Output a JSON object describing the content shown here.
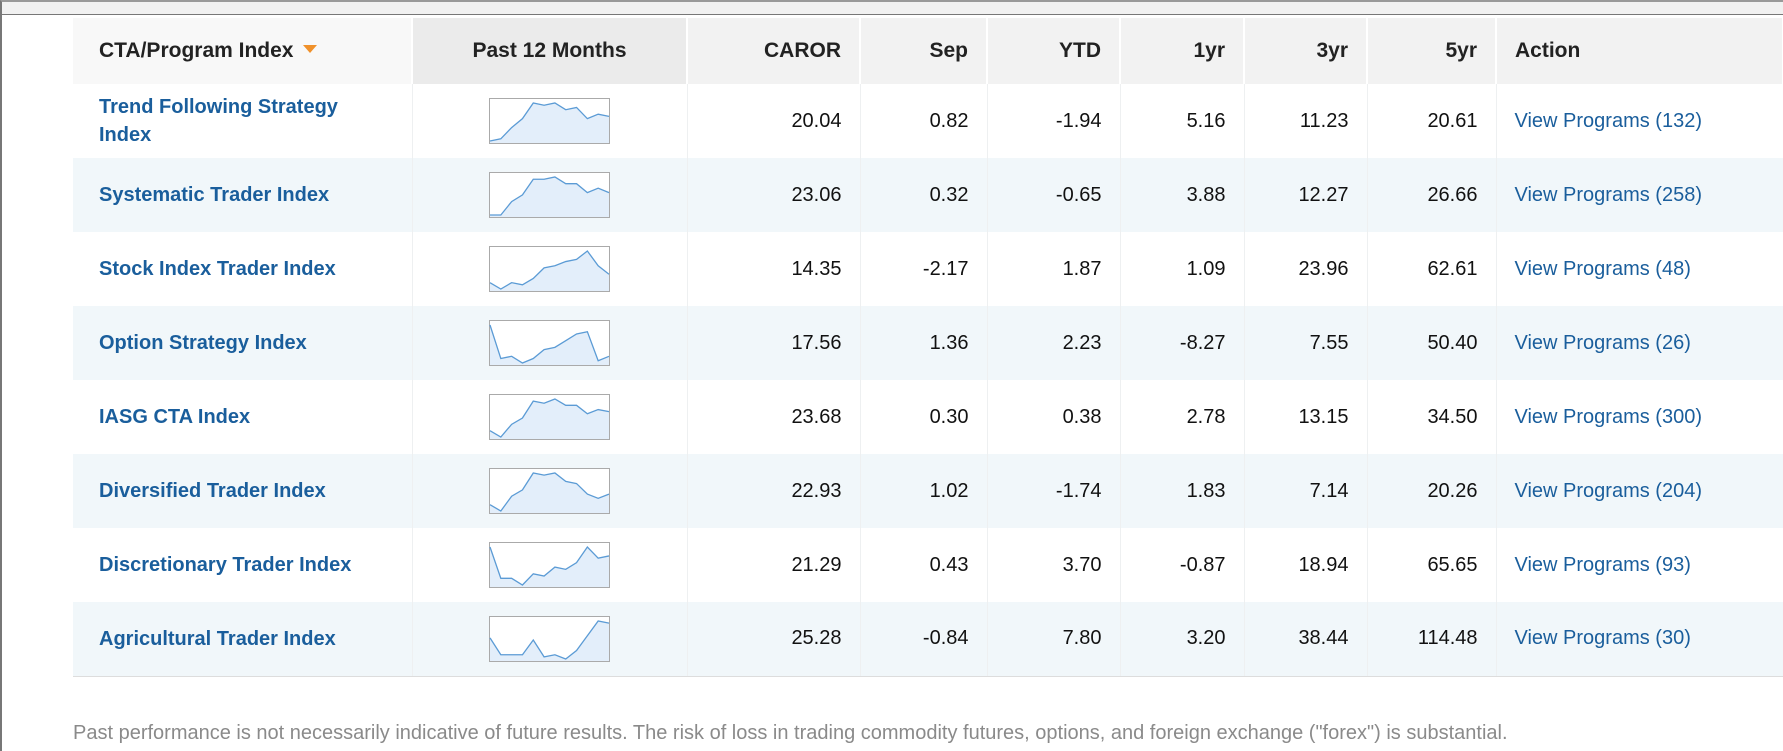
{
  "table": {
    "columns": [
      "CTA/Program Index",
      "Past 12 Months",
      "CAROR",
      "Sep",
      "YTD",
      "1yr",
      "3yr",
      "5yr",
      "Action"
    ],
    "rows": [
      {
        "name": "Trend Following Strategy Index",
        "sparkline": [
          1,
          1.5,
          4,
          6,
          9.5,
          9,
          9.5,
          8,
          8.5,
          6,
          7,
          6.5
        ],
        "cells": [
          "20.04",
          "0.82",
          "-1.94",
          "5.16",
          "11.23",
          "20.61"
        ],
        "action": "View Programs (132)"
      },
      {
        "name": "Systematic Trader Index",
        "sparkline": [
          1,
          1,
          4,
          5.5,
          9,
          9,
          9.5,
          8,
          8,
          6,
          7,
          6
        ],
        "cells": [
          "23.06",
          "0.32",
          "-0.65",
          "3.88",
          "12.27",
          "26.66"
        ],
        "action": "View Programs (258)"
      },
      {
        "name": "Stock Index Trader Index",
        "sparkline": [
          2,
          0.5,
          2,
          1.5,
          3,
          5.5,
          6,
          7,
          7.5,
          9.5,
          6,
          4
        ],
        "cells": [
          "14.35",
          "-2.17",
          "1.87",
          "1.09",
          "23.96",
          "62.61"
        ],
        "action": "View Programs (48)"
      },
      {
        "name": "Option Strategy Index",
        "sparkline": [
          9.5,
          2,
          2.5,
          1,
          2,
          4,
          4.5,
          6,
          7.5,
          8,
          1.5,
          2.5
        ],
        "cells": [
          "17.56",
          "1.36",
          "2.23",
          "-8.27",
          "7.55",
          "50.40"
        ],
        "action": "View Programs (26)"
      },
      {
        "name": "IASG CTA Index",
        "sparkline": [
          2,
          0.5,
          3.5,
          5,
          9,
          8.5,
          9.5,
          8,
          8,
          6,
          7,
          6.5
        ],
        "cells": [
          "23.68",
          "0.30",
          "0.38",
          "2.78",
          "13.15",
          "34.50"
        ],
        "action": "View Programs (300)"
      },
      {
        "name": "Diversified Trader Index",
        "sparkline": [
          2,
          0.5,
          4,
          5.5,
          9.5,
          9,
          9.5,
          7.5,
          7,
          4.5,
          3.5,
          4.5
        ],
        "cells": [
          "22.93",
          "1.02",
          "-1.74",
          "1.83",
          "7.14",
          "20.26"
        ],
        "action": "View Programs (204)"
      },
      {
        "name": "Discretionary Trader Index",
        "sparkline": [
          9.5,
          2.5,
          2.5,
          1,
          3.5,
          3,
          5,
          4.5,
          6,
          9.5,
          7,
          7.5
        ],
        "cells": [
          "21.29",
          "0.43",
          "3.70",
          "-0.87",
          "18.94",
          "65.65"
        ],
        "action": "View Programs (93)"
      },
      {
        "name": "Agricultural Trader Index",
        "sparkline": [
          5.5,
          1.5,
          1.5,
          1.5,
          5,
          1,
          1.5,
          0.5,
          2.5,
          6,
          9.5,
          9
        ],
        "cells": [
          "25.28",
          "-0.84",
          "7.80",
          "3.20",
          "38.44",
          "114.48"
        ],
        "action": "View Programs (30)"
      }
    ]
  },
  "footer": "Past performance is not necessarily indicative of future results. The risk of loss in trading commodity futures, options, and foreign exchange (\"forex\") is substantial."
}
